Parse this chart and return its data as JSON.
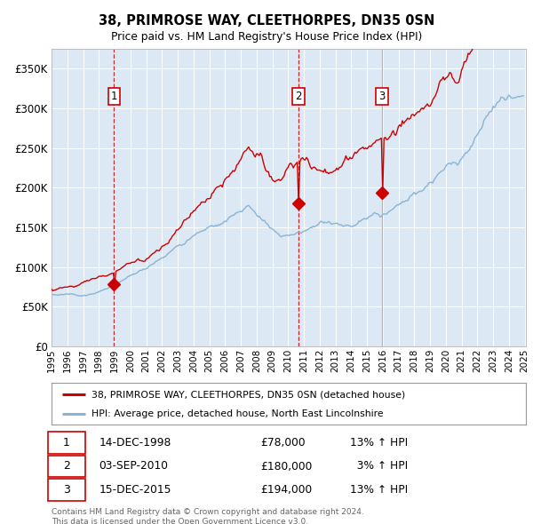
{
  "title": "38, PRIMROSE WAY, CLEETHORPES, DN35 0SN",
  "subtitle": "Price paid vs. HM Land Registry's House Price Index (HPI)",
  "bg_color": "#dce9f5",
  "grid_color": "#ffffff",
  "red_line_color": "#cc0000",
  "blue_line_color": "#8ab4d4",
  "sale_marker_color": "#cc0000",
  "sale1_year": 1998.96,
  "sale1_price": 78000,
  "sale2_year": 2010.67,
  "sale2_price": 180000,
  "sale3_year": 2015.96,
  "sale3_price": 194000,
  "ylim_max": 375000,
  "yticks": [
    0,
    50000,
    100000,
    150000,
    200000,
    250000,
    300000,
    350000
  ],
  "ytick_labels": [
    "£0",
    "£50K",
    "£100K",
    "£150K",
    "£200K",
    "£250K",
    "£300K",
    "£350K"
  ],
  "xstart": 1995,
  "xend": 2025,
  "legend_line1": "38, PRIMROSE WAY, CLEETHORPES, DN35 0SN (detached house)",
  "legend_line2": "HPI: Average price, detached house, North East Lincolnshire",
  "footer1": "Contains HM Land Registry data © Crown copyright and database right 2024.",
  "footer2": "This data is licensed under the Open Government Licence v3.0.",
  "table_rows": [
    [
      "1",
      "14-DEC-1998",
      "£78,000",
      "13% ↑ HPI"
    ],
    [
      "2",
      "03-SEP-2010",
      "£180,000",
      "  3% ↑ HPI"
    ],
    [
      "3",
      "15-DEC-2015",
      "£194,000",
      "13% ↑ HPI"
    ]
  ]
}
